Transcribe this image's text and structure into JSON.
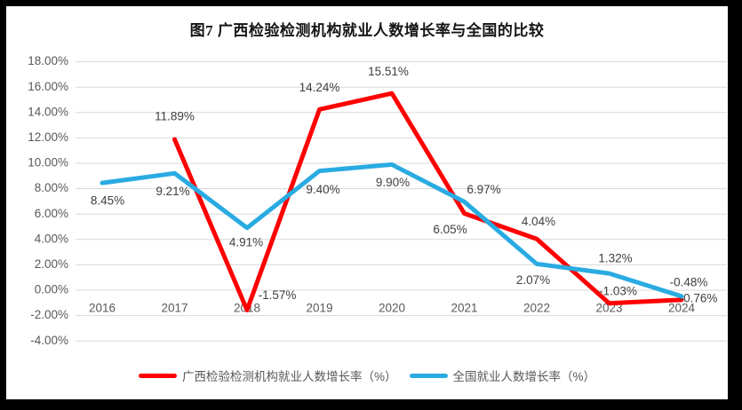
{
  "window": {
    "frame_color": "#000000",
    "canvas_color": "#ffffff"
  },
  "title": "图7 广西检验检测机构就业人数增长率与全国的比较",
  "chart_data": {
    "type": "line",
    "title": "图7 广西检验检测机构就业人数增长率与全国的比较",
    "categories": [
      "2016",
      "2017",
      "2018",
      "2019",
      "2020",
      "2021",
      "2022",
      "2023",
      "2024"
    ],
    "series": [
      {
        "name": "广西检验检测机构就业人数增长率（%）",
        "color": "#FF0000",
        "values": [
          null,
          11.89,
          -1.57,
          14.24,
          15.51,
          6.05,
          4.04,
          -1.03,
          -0.76
        ],
        "labels": [
          "",
          "11.89%",
          "-1.57%",
          "14.24%",
          "15.51%",
          "6.05%",
          "4.04%",
          "-1.03%",
          "-0.76%"
        ]
      },
      {
        "name": "全国就业人数增长率（%）",
        "color": "#29ABE2",
        "values": [
          8.45,
          9.21,
          4.91,
          9.4,
          9.9,
          6.97,
          2.07,
          1.32,
          -0.48
        ],
        "labels": [
          "8.45%",
          "9.21%",
          "4.91%",
          "9.40%",
          "9.90%",
          "6.97%",
          "2.07%",
          "1.32%",
          "-0.48%"
        ]
      }
    ],
    "ylim": [
      -4,
      18
    ],
    "ytick_step": 2,
    "ytick_labels": [
      "18.00%",
      "16.00%",
      "14.00%",
      "12.00%",
      "10.00%",
      "8.00%",
      "6.00%",
      "4.00%",
      "2.00%",
      "0.00%",
      "-2.00%",
      "-4.00%"
    ],
    "grid": true,
    "gridline_color": "#D9D9D9",
    "axis_text_color": "#595959",
    "data_label_color": "#404040",
    "data_labels": true,
    "legend_position": "bottom"
  }
}
